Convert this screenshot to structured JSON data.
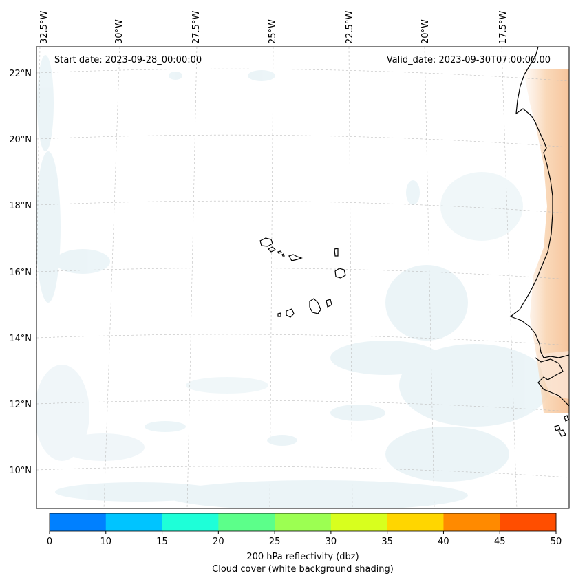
{
  "map": {
    "start_date": "Start date: 2023-09-28_00:00:00",
    "valid_date": "Valid_date: 2023-09-30T07:00:00.00",
    "lon_labels": [
      "32.5°W",
      "30°W",
      "27.5°W",
      "25°W",
      "22.5°W",
      "20°W",
      "17.5°W"
    ],
    "lat_labels": [
      "22°N",
      "20°N",
      "18°N",
      "16°N",
      "14°N",
      "12°N",
      "10°N"
    ]
  },
  "colorbar": {
    "colors": [
      "#0080ff",
      "#00c4ff",
      "#1effd8",
      "#5cff8a",
      "#9cff52",
      "#d8ff1e",
      "#ffd600",
      "#ff8a00",
      "#ff4e00"
    ],
    "tick_labels": [
      "0",
      "10",
      "15",
      "20",
      "25",
      "30",
      "35",
      "40",
      "45",
      "50"
    ],
    "label_line1": "200 hPa reflectivity (dbz)",
    "label_line2": "Cloud cover (white background shading)"
  },
  "colors": {
    "cloud_shade": "#dcecf2",
    "dust_shade": "#f7c9a3"
  }
}
